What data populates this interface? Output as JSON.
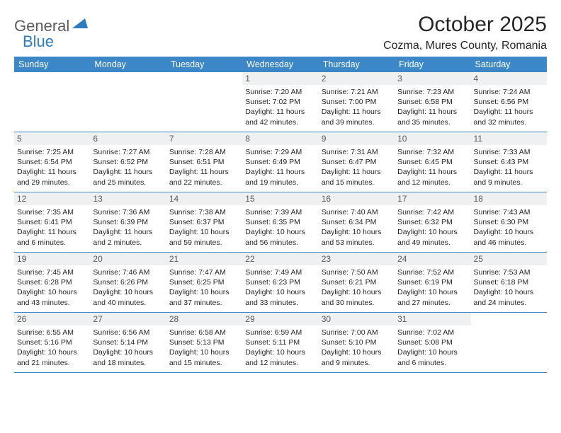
{
  "logo": {
    "text_general": "General",
    "text_blue": "Blue"
  },
  "title": "October 2025",
  "location": "Cozma, Mures County, Romania",
  "colors": {
    "header_bg": "#3b87c8",
    "header_text": "#ffffff",
    "daynum_bg": "#eef0f1",
    "daynum_text": "#5a5a5a",
    "row_border": "#3b87c8",
    "body_text": "#262626",
    "logo_gray": "#5c5c5c",
    "logo_blue": "#2f7bbf",
    "background": "#ffffff"
  },
  "typography": {
    "title_fontsize": 30,
    "location_fontsize": 16,
    "dayheader_fontsize": 12.5,
    "daynum_fontsize": 12,
    "info_fontsize": 10.5,
    "font_family": "Arial"
  },
  "day_names": [
    "Sunday",
    "Monday",
    "Tuesday",
    "Wednesday",
    "Thursday",
    "Friday",
    "Saturday"
  ],
  "weeks": [
    [
      {
        "n": "",
        "sr": "",
        "ss": "",
        "dl": ""
      },
      {
        "n": "",
        "sr": "",
        "ss": "",
        "dl": ""
      },
      {
        "n": "",
        "sr": "",
        "ss": "",
        "dl": ""
      },
      {
        "n": "1",
        "sr": "Sunrise: 7:20 AM",
        "ss": "Sunset: 7:02 PM",
        "dl": "Daylight: 11 hours and 42 minutes."
      },
      {
        "n": "2",
        "sr": "Sunrise: 7:21 AM",
        "ss": "Sunset: 7:00 PM",
        "dl": "Daylight: 11 hours and 39 minutes."
      },
      {
        "n": "3",
        "sr": "Sunrise: 7:23 AM",
        "ss": "Sunset: 6:58 PM",
        "dl": "Daylight: 11 hours and 35 minutes."
      },
      {
        "n": "4",
        "sr": "Sunrise: 7:24 AM",
        "ss": "Sunset: 6:56 PM",
        "dl": "Daylight: 11 hours and 32 minutes."
      }
    ],
    [
      {
        "n": "5",
        "sr": "Sunrise: 7:25 AM",
        "ss": "Sunset: 6:54 PM",
        "dl": "Daylight: 11 hours and 29 minutes."
      },
      {
        "n": "6",
        "sr": "Sunrise: 7:27 AM",
        "ss": "Sunset: 6:52 PM",
        "dl": "Daylight: 11 hours and 25 minutes."
      },
      {
        "n": "7",
        "sr": "Sunrise: 7:28 AM",
        "ss": "Sunset: 6:51 PM",
        "dl": "Daylight: 11 hours and 22 minutes."
      },
      {
        "n": "8",
        "sr": "Sunrise: 7:29 AM",
        "ss": "Sunset: 6:49 PM",
        "dl": "Daylight: 11 hours and 19 minutes."
      },
      {
        "n": "9",
        "sr": "Sunrise: 7:31 AM",
        "ss": "Sunset: 6:47 PM",
        "dl": "Daylight: 11 hours and 15 minutes."
      },
      {
        "n": "10",
        "sr": "Sunrise: 7:32 AM",
        "ss": "Sunset: 6:45 PM",
        "dl": "Daylight: 11 hours and 12 minutes."
      },
      {
        "n": "11",
        "sr": "Sunrise: 7:33 AM",
        "ss": "Sunset: 6:43 PM",
        "dl": "Daylight: 11 hours and 9 minutes."
      }
    ],
    [
      {
        "n": "12",
        "sr": "Sunrise: 7:35 AM",
        "ss": "Sunset: 6:41 PM",
        "dl": "Daylight: 11 hours and 6 minutes."
      },
      {
        "n": "13",
        "sr": "Sunrise: 7:36 AM",
        "ss": "Sunset: 6:39 PM",
        "dl": "Daylight: 11 hours and 2 minutes."
      },
      {
        "n": "14",
        "sr": "Sunrise: 7:38 AM",
        "ss": "Sunset: 6:37 PM",
        "dl": "Daylight: 10 hours and 59 minutes."
      },
      {
        "n": "15",
        "sr": "Sunrise: 7:39 AM",
        "ss": "Sunset: 6:35 PM",
        "dl": "Daylight: 10 hours and 56 minutes."
      },
      {
        "n": "16",
        "sr": "Sunrise: 7:40 AM",
        "ss": "Sunset: 6:34 PM",
        "dl": "Daylight: 10 hours and 53 minutes."
      },
      {
        "n": "17",
        "sr": "Sunrise: 7:42 AM",
        "ss": "Sunset: 6:32 PM",
        "dl": "Daylight: 10 hours and 49 minutes."
      },
      {
        "n": "18",
        "sr": "Sunrise: 7:43 AM",
        "ss": "Sunset: 6:30 PM",
        "dl": "Daylight: 10 hours and 46 minutes."
      }
    ],
    [
      {
        "n": "19",
        "sr": "Sunrise: 7:45 AM",
        "ss": "Sunset: 6:28 PM",
        "dl": "Daylight: 10 hours and 43 minutes."
      },
      {
        "n": "20",
        "sr": "Sunrise: 7:46 AM",
        "ss": "Sunset: 6:26 PM",
        "dl": "Daylight: 10 hours and 40 minutes."
      },
      {
        "n": "21",
        "sr": "Sunrise: 7:47 AM",
        "ss": "Sunset: 6:25 PM",
        "dl": "Daylight: 10 hours and 37 minutes."
      },
      {
        "n": "22",
        "sr": "Sunrise: 7:49 AM",
        "ss": "Sunset: 6:23 PM",
        "dl": "Daylight: 10 hours and 33 minutes."
      },
      {
        "n": "23",
        "sr": "Sunrise: 7:50 AM",
        "ss": "Sunset: 6:21 PM",
        "dl": "Daylight: 10 hours and 30 minutes."
      },
      {
        "n": "24",
        "sr": "Sunrise: 7:52 AM",
        "ss": "Sunset: 6:19 PM",
        "dl": "Daylight: 10 hours and 27 minutes."
      },
      {
        "n": "25",
        "sr": "Sunrise: 7:53 AM",
        "ss": "Sunset: 6:18 PM",
        "dl": "Daylight: 10 hours and 24 minutes."
      }
    ],
    [
      {
        "n": "26",
        "sr": "Sunrise: 6:55 AM",
        "ss": "Sunset: 5:16 PM",
        "dl": "Daylight: 10 hours and 21 minutes."
      },
      {
        "n": "27",
        "sr": "Sunrise: 6:56 AM",
        "ss": "Sunset: 5:14 PM",
        "dl": "Daylight: 10 hours and 18 minutes."
      },
      {
        "n": "28",
        "sr": "Sunrise: 6:58 AM",
        "ss": "Sunset: 5:13 PM",
        "dl": "Daylight: 10 hours and 15 minutes."
      },
      {
        "n": "29",
        "sr": "Sunrise: 6:59 AM",
        "ss": "Sunset: 5:11 PM",
        "dl": "Daylight: 10 hours and 12 minutes."
      },
      {
        "n": "30",
        "sr": "Sunrise: 7:00 AM",
        "ss": "Sunset: 5:10 PM",
        "dl": "Daylight: 10 hours and 9 minutes."
      },
      {
        "n": "31",
        "sr": "Sunrise: 7:02 AM",
        "ss": "Sunset: 5:08 PM",
        "dl": "Daylight: 10 hours and 6 minutes."
      },
      {
        "n": "",
        "sr": "",
        "ss": "",
        "dl": ""
      }
    ]
  ]
}
